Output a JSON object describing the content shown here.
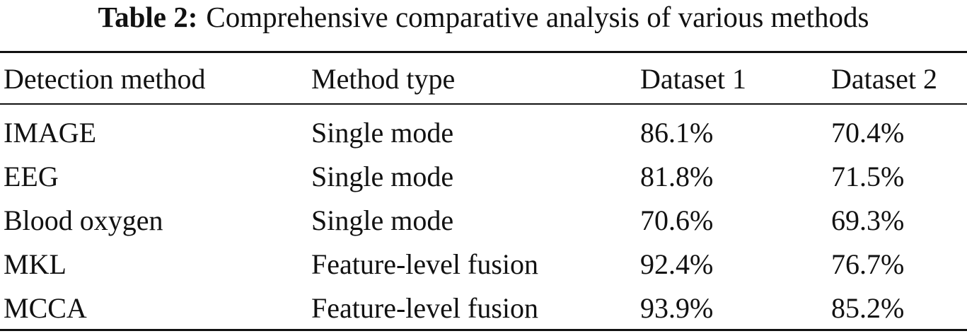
{
  "caption": {
    "label": "Table 2:",
    "text": "Comprehensive comparative analysis of various methods"
  },
  "table": {
    "header": [
      "Detection method",
      "Method type",
      "Dataset 1",
      "Dataset 2"
    ],
    "rows": [
      [
        "IMAGE",
        "Single mode",
        "86.1%",
        "70.4%"
      ],
      [
        "EEG",
        "Single mode",
        "81.8%",
        "71.5%"
      ],
      [
        "Blood oxygen",
        "Single mode",
        "70.6%",
        "69.3%"
      ],
      [
        "MKL",
        "Feature-level fusion",
        "92.4%",
        "76.7%"
      ],
      [
        "MCCA",
        "Feature-level fusion",
        "93.9%",
        "85.2%"
      ]
    ]
  }
}
